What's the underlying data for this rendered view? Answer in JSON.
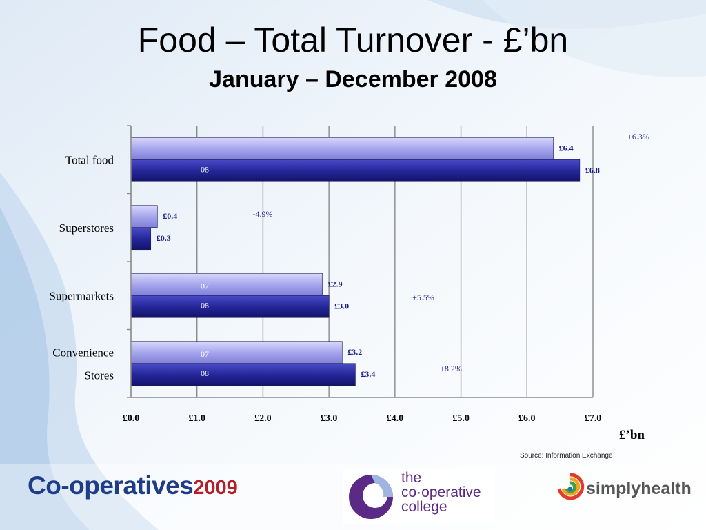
{
  "slide": {
    "title": "Food – Total Turnover - £’bn",
    "subtitle": "January – December 2008",
    "unit_label": "£’bn",
    "source": "Source: Information Exchange"
  },
  "logos": {
    "coop": {
      "text": "Co-operatives",
      "year": "2009"
    },
    "college": {
      "line1": "the",
      "line2": "co·operative",
      "line3": "college"
    },
    "simply": {
      "text": "simplyhealth"
    }
  },
  "colors": {
    "bar_07": "#a8a8ee",
    "bar_08": "#25279a",
    "label_text": "#1c1c8c"
  },
  "chart_data": {
    "type": "bar",
    "orientation": "horizontal",
    "categories": [
      "Total food",
      "Superstores",
      "Supermarkets",
      "Convenience Stores"
    ],
    "series": [
      {
        "values": [
          6.4,
          0.4,
          2.9,
          3.2
        ],
        "labels": [
          "£6.4",
          "£0.4",
          "£2.9",
          "£3.2"
        ]
      },
      {
        "values": [
          6.8,
          0.3,
          3.0,
          3.4
        ],
        "labels": [
          "£6.8",
          "£0.3",
          "£3.0",
          "£3.4"
        ]
      }
    ],
    "bar_year_text": [
      [
        "",
        "08"
      ],
      [
        "",
        ""
      ],
      [
        "07",
        "08"
      ],
      [
        "07",
        "08"
      ]
    ],
    "change_labels": [
      "+6.3%",
      "-4.9%",
      "+5.5%",
      "+8.2%"
    ],
    "xlim": [
      0,
      7
    ],
    "xticks": [
      "£0.0",
      "£1.0",
      "£2.0",
      "£3.0",
      "£4.0",
      "£5.0",
      "£6.0",
      "£7.0"
    ],
    "xlabel": "£’bn",
    "grid": true
  }
}
